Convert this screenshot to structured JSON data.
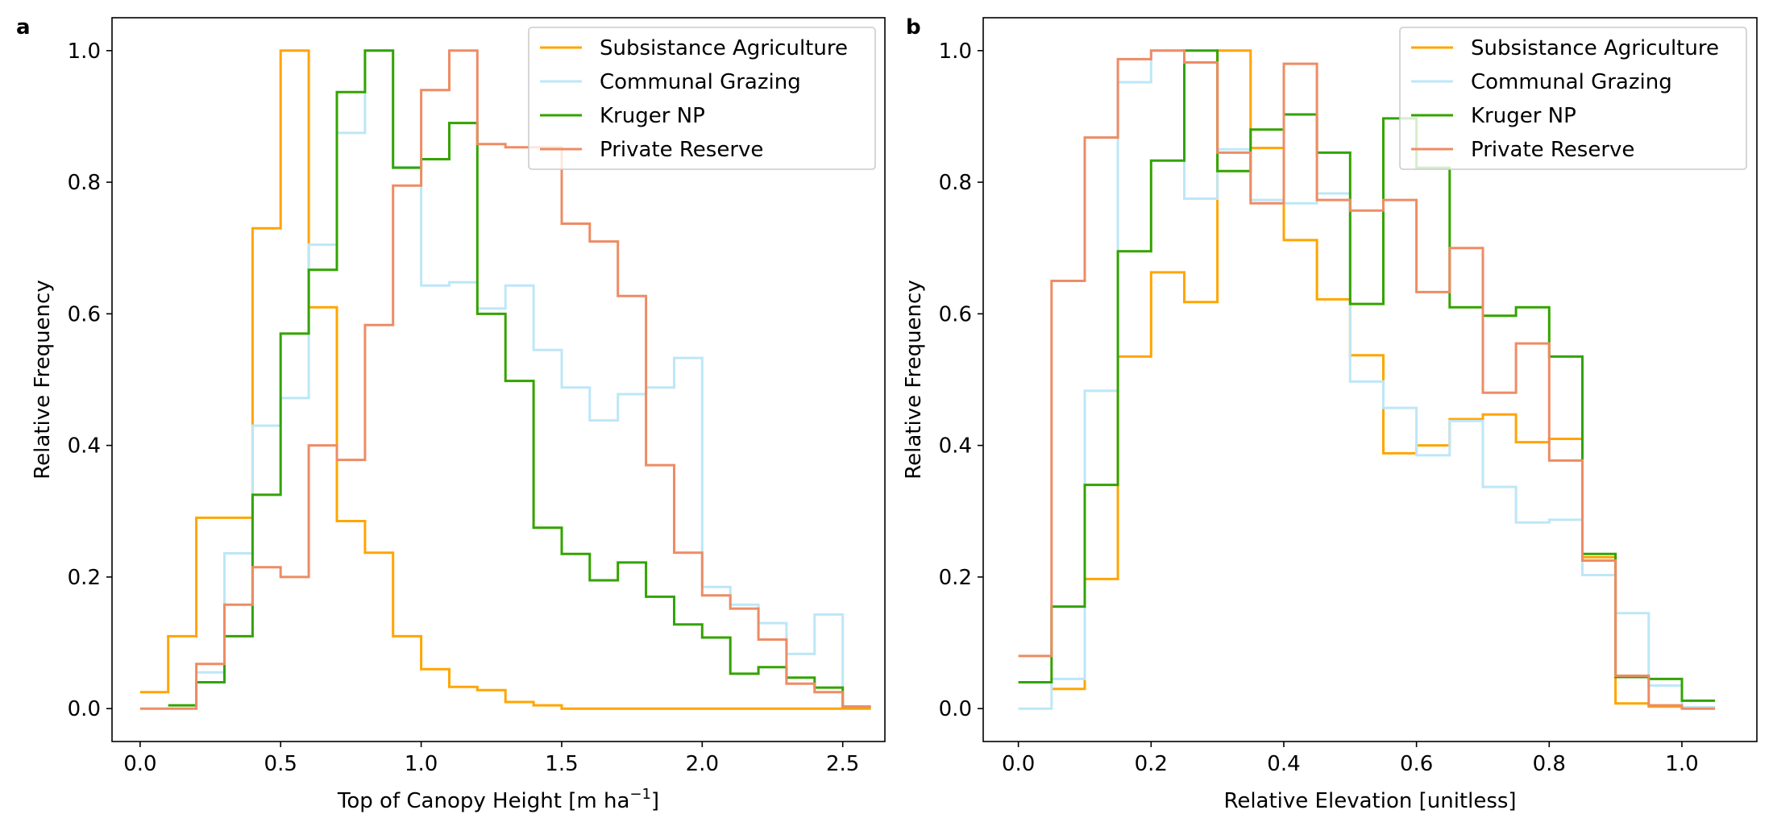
{
  "chart_data": [
    {
      "type": "line",
      "panel_label": "a",
      "xlabel": "Top of Canopy Height [m ha",
      "xlabel_sup": "−1",
      "xlabel_close": "]",
      "ylabel": "Relative Frequency",
      "xlim": [
        -0.1,
        2.65
      ],
      "ylim": [
        -0.05,
        1.05
      ],
      "xticks": [
        0.0,
        0.5,
        1.0,
        1.5,
        2.0,
        2.5
      ],
      "xtick_labels": [
        "0.0",
        "0.5",
        "1.0",
        "1.5",
        "2.0",
        "2.5"
      ],
      "yticks": [
        0.0,
        0.2,
        0.4,
        0.6,
        0.8,
        1.0
      ],
      "ytick_labels": [
        "0.0",
        "0.2",
        "0.4",
        "0.6",
        "0.8",
        "1.0"
      ],
      "legend_position": "top-right",
      "series": [
        {
          "name": "Subsistance Agriculture",
          "color": "#ffa500",
          "x": [
            0,
            0.1,
            0.2,
            0.3,
            0.4,
            0.5,
            0.6,
            0.7,
            0.8,
            0.9,
            1.0,
            1.1,
            1.2,
            1.3,
            1.4,
            1.5,
            1.6,
            1.7,
            1.8,
            1.9,
            2.0,
            2.1,
            2.2,
            2.3,
            2.4,
            2.5
          ],
          "values": [
            0.025,
            0.11,
            0.29,
            0.29,
            0.73,
            1.0,
            0.61,
            0.285,
            0.237,
            0.11,
            0.06,
            0.033,
            0.028,
            0.01,
            0.005,
            0,
            0,
            0,
            0,
            0,
            0,
            0,
            0,
            0,
            0,
            0
          ]
        },
        {
          "name": "Communal Grazing",
          "color": "#bde7f7",
          "x": [
            0.2,
            0.3,
            0.4,
            0.5,
            0.6,
            0.7,
            0.8,
            0.9,
            1.0,
            1.1,
            1.2,
            1.3,
            1.4,
            1.5,
            1.6,
            1.7,
            1.8,
            1.9,
            2.0,
            2.1,
            2.2,
            2.3,
            2.4,
            2.5
          ],
          "values": [
            0.055,
            0.236,
            0.43,
            0.472,
            0.705,
            0.875,
            1.0,
            0.823,
            0.643,
            0.648,
            0.608,
            0.643,
            0.545,
            0.488,
            0.438,
            0.478,
            0.488,
            0.533,
            0.185,
            0.158,
            0.13,
            0.083,
            0.143,
            0.003
          ]
        },
        {
          "name": "Kruger NP",
          "color": "#33a300",
          "x": [
            0.1,
            0.2,
            0.3,
            0.4,
            0.5,
            0.6,
            0.7,
            0.8,
            0.9,
            1.0,
            1.1,
            1.2,
            1.3,
            1.4,
            1.5,
            1.6,
            1.7,
            1.8,
            1.9,
            2.0,
            2.1,
            2.2,
            2.3,
            2.4,
            2.5
          ],
          "values": [
            0.005,
            0.04,
            0.11,
            0.325,
            0.57,
            0.667,
            0.937,
            1.0,
            0.822,
            0.835,
            0.89,
            0.6,
            0.498,
            0.275,
            0.235,
            0.195,
            0.222,
            0.17,
            0.128,
            0.108,
            0.053,
            0.063,
            0.047,
            0.032,
            0.003
          ]
        },
        {
          "name": "Private Reserve",
          "color": "#ed8c64",
          "x": [
            0,
            0.1,
            0.2,
            0.3,
            0.4,
            0.5,
            0.6,
            0.7,
            0.8,
            0.9,
            1.0,
            1.1,
            1.2,
            1.3,
            1.4,
            1.5,
            1.6,
            1.7,
            1.8,
            1.9,
            2.0,
            2.1,
            2.2,
            2.3,
            2.4,
            2.5
          ],
          "values": [
            0,
            0,
            0.068,
            0.158,
            0.215,
            0.2,
            0.4,
            0.378,
            0.583,
            0.795,
            0.94,
            1.0,
            0.858,
            0.853,
            0.853,
            0.737,
            0.71,
            0.627,
            0.37,
            0.237,
            0.172,
            0.152,
            0.105,
            0.038,
            0.025,
            0.003
          ]
        }
      ]
    },
    {
      "type": "line",
      "panel_label": "b",
      "xlabel": "Relative Elevation [unitless]",
      "ylabel": "Relative Frequency",
      "xlim": [
        -0.053,
        1.113
      ],
      "ylim": [
        -0.05,
        1.05
      ],
      "xticks": [
        0.0,
        0.2,
        0.4,
        0.6,
        0.8,
        1.0
      ],
      "xtick_labels": [
        "0.0",
        "0.2",
        "0.4",
        "0.6",
        "0.8",
        "1.0"
      ],
      "yticks": [
        0.0,
        0.2,
        0.4,
        0.6,
        0.8,
        1.0
      ],
      "ytick_labels": [
        "0.0",
        "0.2",
        "0.4",
        "0.6",
        "0.8",
        "1.0"
      ],
      "legend_position": "top-right",
      "series": [
        {
          "name": "Subsistance Agriculture",
          "color": "#ffa500",
          "x": [
            0.05,
            0.1,
            0.15,
            0.2,
            0.25,
            0.3,
            0.35,
            0.4,
            0.45,
            0.5,
            0.55,
            0.6,
            0.65,
            0.7,
            0.75,
            0.8,
            0.85,
            0.9,
            0.95,
            1.0
          ],
          "values": [
            0.03,
            0.197,
            0.535,
            0.663,
            0.618,
            1.0,
            0.852,
            0.712,
            0.622,
            0.537,
            0.388,
            0.4,
            0.44,
            0.447,
            0.405,
            0.41,
            0.23,
            0.008,
            0.003,
            0.002
          ]
        },
        {
          "name": "Communal Grazing",
          "color": "#bde7f7",
          "x": [
            0,
            0.05,
            0.1,
            0.15,
            0.2,
            0.25,
            0.3,
            0.35,
            0.4,
            0.45,
            0.5,
            0.55,
            0.6,
            0.65,
            0.7,
            0.75,
            0.8,
            0.85,
            0.9,
            0.95,
            1.0
          ],
          "values": [
            0,
            0.045,
            0.483,
            0.952,
            1.0,
            0.775,
            0.85,
            0.773,
            0.768,
            0.783,
            0.497,
            0.457,
            0.385,
            0.437,
            0.337,
            0.283,
            0.287,
            0.203,
            0.145,
            0.035,
            0.002
          ]
        },
        {
          "name": "Kruger NP",
          "color": "#33a300",
          "x": [
            0,
            0.05,
            0.1,
            0.15,
            0.2,
            0.25,
            0.3,
            0.35,
            0.4,
            0.45,
            0.5,
            0.55,
            0.6,
            0.65,
            0.7,
            0.75,
            0.8,
            0.85,
            0.9,
            0.95,
            1.0
          ],
          "values": [
            0.04,
            0.155,
            0.34,
            0.695,
            0.833,
            1.0,
            0.817,
            0.88,
            0.903,
            0.845,
            0.615,
            0.897,
            0.822,
            0.61,
            0.597,
            0.61,
            0.535,
            0.235,
            0.048,
            0.045,
            0.012
          ]
        },
        {
          "name": "Private Reserve",
          "color": "#ed8c64",
          "x": [
            0,
            0.05,
            0.1,
            0.15,
            0.2,
            0.25,
            0.3,
            0.35,
            0.4,
            0.45,
            0.5,
            0.55,
            0.6,
            0.65,
            0.7,
            0.75,
            0.8,
            0.85,
            0.9,
            0.95,
            1.0
          ],
          "values": [
            0.08,
            0.65,
            0.868,
            0.987,
            1.0,
            0.982,
            0.845,
            0.768,
            0.98,
            0.773,
            0.757,
            0.773,
            0.633,
            0.7,
            0.48,
            0.555,
            0.377,
            0.225,
            0.05,
            0.005,
            0
          ]
        }
      ]
    }
  ]
}
